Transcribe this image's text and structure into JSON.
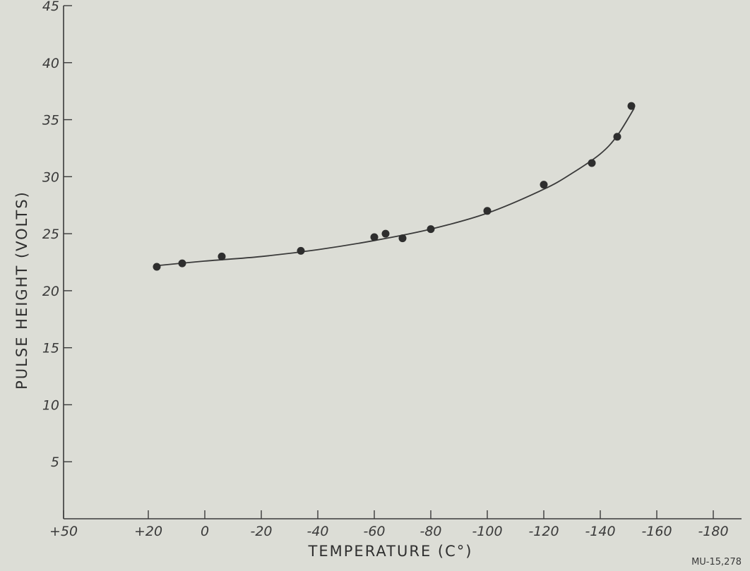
{
  "figure_id": "MU-15,278",
  "chart_data": {
    "type": "scatter",
    "xlabel": "TEMPERATURE (C°)",
    "ylabel": "PULSE HEIGHT (VOLTS)",
    "xlim": [
      50,
      -190
    ],
    "ylim": [
      0,
      45
    ],
    "x_ticks": [
      50,
      20,
      0,
      -20,
      -40,
      -60,
      -80,
      -100,
      -120,
      -140,
      -160,
      -180
    ],
    "x_tick_labels": [
      "+50",
      "+20",
      "0",
      "-20",
      "-40",
      "-60",
      "-80",
      "-100",
      "-120",
      "-140",
      "-160",
      "-180"
    ],
    "y_ticks": [
      5,
      10,
      15,
      20,
      25,
      30,
      35,
      40,
      45
    ],
    "y_tick_labels": [
      "5",
      "10",
      "15",
      "20",
      "25",
      "30",
      "35",
      "40",
      "45"
    ],
    "grid": false,
    "series": [
      {
        "points": [
          {
            "x": 17,
            "y": 22.1
          },
          {
            "x": 8,
            "y": 22.4
          },
          {
            "x": -6,
            "y": 23.0
          },
          {
            "x": -34,
            "y": 23.5
          },
          {
            "x": -60,
            "y": 24.7
          },
          {
            "x": -64,
            "y": 25.0
          },
          {
            "x": -70,
            "y": 24.6
          },
          {
            "x": -80,
            "y": 25.4
          },
          {
            "x": -100,
            "y": 27.0
          },
          {
            "x": -120,
            "y": 29.3
          },
          {
            "x": -137,
            "y": 31.2
          },
          {
            "x": -146,
            "y": 33.5
          },
          {
            "x": -151,
            "y": 36.2
          }
        ]
      }
    ],
    "fit_curve": [
      {
        "x": 17,
        "y": 22.2
      },
      {
        "x": 0,
        "y": 22.6
      },
      {
        "x": -20,
        "y": 23.0
      },
      {
        "x": -40,
        "y": 23.6
      },
      {
        "x": -60,
        "y": 24.4
      },
      {
        "x": -80,
        "y": 25.4
      },
      {
        "x": -100,
        "y": 26.8
      },
      {
        "x": -120,
        "y": 28.9
      },
      {
        "x": -130,
        "y": 30.3
      },
      {
        "x": -140,
        "y": 32.0
      },
      {
        "x": -146,
        "y": 33.6
      },
      {
        "x": -152,
        "y": 36.0
      }
    ]
  }
}
